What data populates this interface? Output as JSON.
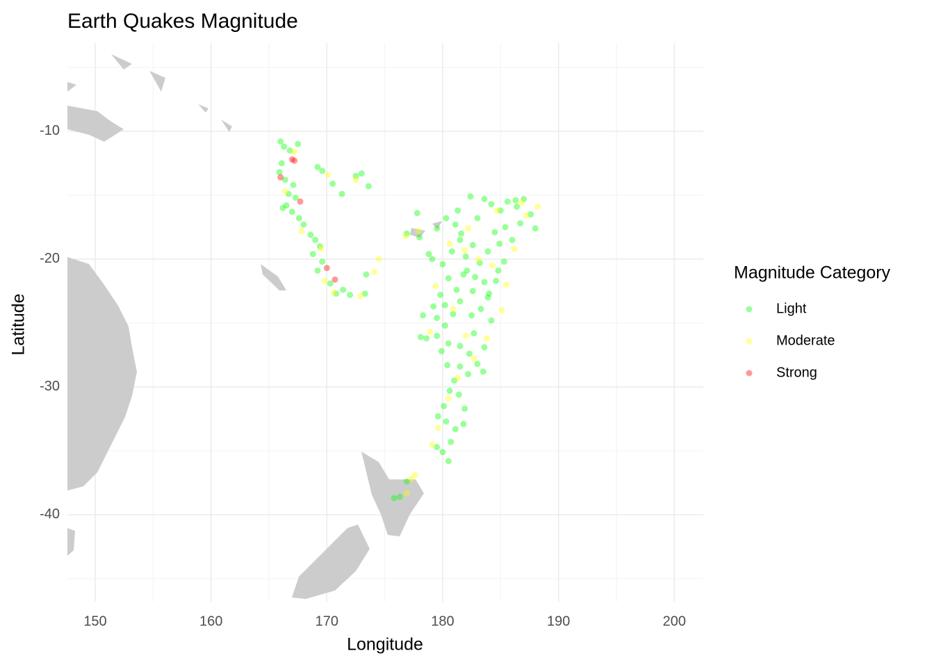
{
  "chart_data": {
    "type": "scatter",
    "title": "Earth Quakes Magnitude",
    "x_label": "Longitude",
    "y_label": "Latitude",
    "legend_title": "Magnitude Category",
    "legend": "right",
    "grid": true,
    "xlim": [
      147.6,
      202.5
    ],
    "ylim": [
      -46.8,
      -3.1
    ],
    "xticks": [
      150,
      160,
      170,
      180,
      190,
      200
    ],
    "yticks": [
      -10,
      -20,
      -30,
      -40
    ],
    "xminorticks": [
      155,
      165,
      175,
      185,
      195
    ],
    "yminorticks": [
      -5,
      -15,
      -25,
      -35,
      -45
    ],
    "series": [
      {
        "name": "Light",
        "color": "#00ff00",
        "x": [
          166,
          166.3,
          166.8,
          166.1,
          165.9,
          166.4,
          167.1,
          166.7,
          167.3,
          166.5,
          167,
          167.6,
          168,
          168.6,
          169,
          169.4,
          168.8,
          169.6,
          169.2,
          170.3,
          170.8,
          171.4,
          172,
          173.3,
          169.2,
          169.6,
          170.5,
          171.3,
          172.5,
          173,
          173.6,
          173.4,
          167.5,
          166.2,
          177.8,
          176.9,
          178,
          179.5,
          180.3,
          181.1,
          181.5,
          180.8,
          182,
          182.6,
          183.2,
          183.9,
          184.5,
          185,
          185.6,
          186.3,
          187,
          187.6,
          188,
          186.7,
          186,
          185.3,
          184.6,
          184,
          183.3,
          182.6,
          181.8,
          181.2,
          180.5,
          179.8,
          179.2,
          179.5,
          180.2,
          180.9,
          181.5,
          178.3,
          178.1,
          178.6,
          179.5,
          180.5,
          181.5,
          182.3,
          183,
          182.2,
          181.5,
          182.7,
          183.6,
          183.5,
          181,
          180.6,
          181.4,
          180.1,
          179.6,
          180.3,
          181.1,
          181.8,
          180.7,
          180,
          180.5,
          179.5,
          176.3,
          175.8,
          176.9,
          182.4,
          183.6,
          184.2,
          183,
          181.3,
          184.9,
          182.1,
          183.6,
          180,
          179.1,
          178.8,
          186.4,
          185.4,
          180.4,
          182.5,
          181.9,
          180.2,
          179.9,
          184.2,
          183.9,
          181.6,
          182.8,
          184.8
        ],
        "values": [
          -10.8,
          -11.2,
          -11.5,
          -12.5,
          -13.2,
          -13.8,
          -14.2,
          -14.9,
          -15.2,
          -15.8,
          -16.3,
          -16.8,
          -17.3,
          -18.1,
          -18.5,
          -19,
          -19.6,
          -20.2,
          -20.9,
          -21.9,
          -22.7,
          -22.4,
          -22.8,
          -22.7,
          -12.8,
          -13.1,
          -14.1,
          -14.9,
          -13.5,
          -13.3,
          -14.3,
          -21.2,
          -11,
          -16,
          -16.4,
          -18,
          -18.3,
          -17.6,
          -16.8,
          -17.3,
          -18.5,
          -19.4,
          -19.8,
          -18.9,
          -20.3,
          -19.4,
          -17.9,
          -16.2,
          -15.5,
          -15.4,
          -15.3,
          -16.5,
          -17.6,
          -17.2,
          -18.5,
          -20.2,
          -21.7,
          -22.7,
          -23.9,
          -22.5,
          -21.2,
          -22.4,
          -21.5,
          -22.8,
          -23.7,
          -24.6,
          -25.2,
          -24.3,
          -23.3,
          -24.4,
          -26.1,
          -26.2,
          -26,
          -26.6,
          -26.8,
          -27.4,
          -28.2,
          -29,
          -28.4,
          -25.8,
          -26.9,
          -28.8,
          -29.5,
          -30.3,
          -30.6,
          -31.5,
          -32.3,
          -32.7,
          -33.3,
          -32.9,
          -34.3,
          -35.1,
          -35.8,
          -34.7,
          -38.6,
          -38.7,
          -37.4,
          -15.1,
          -15.3,
          -15.7,
          -16.8,
          -16.2,
          -18.8,
          -20.9,
          -21.8,
          -20.4,
          -20,
          -19.6,
          -15.9,
          -17.5,
          -28.3,
          -24.4,
          -31.7,
          -23.6,
          -27.2,
          -24.8,
          -23,
          -18,
          -21.4,
          -20.9
        ]
      },
      {
        "name": "Moderate",
        "color": "#ffff00",
        "x": [
          167.2,
          166.4,
          167.8,
          169.5,
          169.8,
          170.1,
          172.5,
          174.5,
          174.1,
          172.9,
          176.8,
          177.6,
          177.3,
          176.9,
          179.1,
          179.6,
          180.5,
          181.3,
          182.7,
          183.8,
          185.1,
          185.5,
          184.3,
          186.2,
          187.2,
          188.2,
          186.8,
          182.2,
          180.6,
          179.4,
          180.9,
          178.9,
          183.1,
          181.9,
          184.7,
          182,
          170.6,
          177.9
        ],
        "values": [
          -11.6,
          -14.7,
          -17.8,
          -19.2,
          -21.7,
          -13.4,
          -13.8,
          -20,
          -21,
          -22.9,
          -18.2,
          -36.9,
          -37.2,
          -38.3,
          -34.5,
          -33.2,
          -30.9,
          -29.3,
          -27.8,
          -26.2,
          -24,
          -22,
          -20.5,
          -19.2,
          -16.6,
          -15.9,
          -15.6,
          -17.6,
          -18.8,
          -22.1,
          -23.9,
          -25.7,
          -20,
          -19.3,
          -16.2,
          -26,
          -22.6,
          -17.8
        ]
      },
      {
        "name": "Strong",
        "color": "#ff0000",
        "x": [
          166,
          167,
          167.7,
          170,
          170.7,
          167.2
        ],
        "values": [
          -13.6,
          -12.2,
          -15.5,
          -20.7,
          -21.6,
          -12.3
        ]
      }
    ]
  }
}
